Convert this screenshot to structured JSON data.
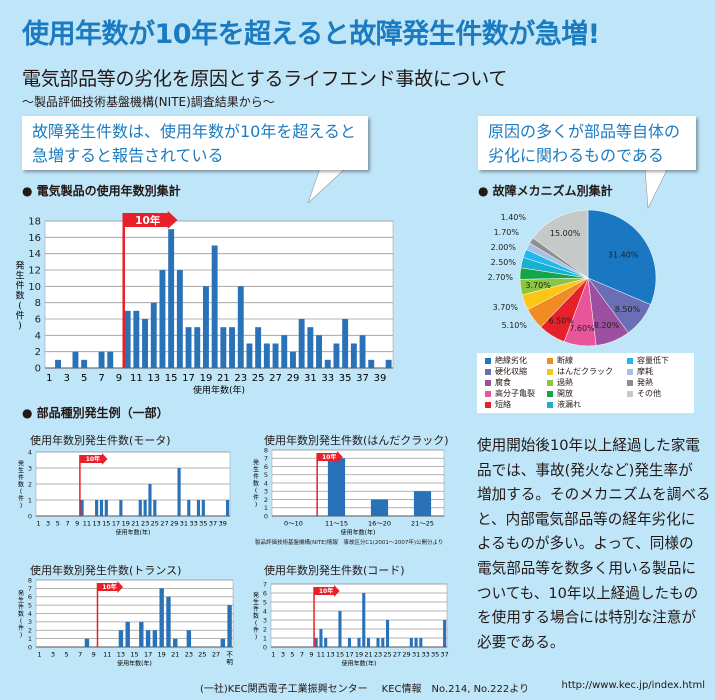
{
  "header": {
    "title": "使用年数が10年を超えると故障発生件数が急増!",
    "subtitle": "電気部品等の劣化を原因とするライフエンド事故について",
    "source_line": "～製品評価技術基盤機構(NITE)調査結果から～"
  },
  "callouts": {
    "left": [
      "故障発生件数は、使用年数が10年を超えると",
      "急増すると報告されている"
    ],
    "right": [
      "原因の多くが部品等自体の",
      "劣化に関わるものである"
    ]
  },
  "sections": {
    "main_chart": "● 電気製品の使用年数別集計",
    "pie_chart": "● 故障メカニズム別集計",
    "parts": "● 部品種別発生例（一部）"
  },
  "colors": {
    "accent": "#1b7bc0",
    "bar": "#2a72b8",
    "marker": "#e8202a",
    "background": "#bfe5f8"
  },
  "chart_data": [
    {
      "id": "main",
      "type": "bar",
      "title": "",
      "xlabel": "使用年数(年)",
      "ylabel": "発生件数(件)",
      "categories": [
        "1",
        "2",
        "3",
        "4",
        "5",
        "6",
        "7",
        "8",
        "9",
        "10",
        "11",
        "12",
        "13",
        "14",
        "15",
        "16",
        "17",
        "18",
        "19",
        "20",
        "21",
        "22",
        "23",
        "24",
        "25",
        "26",
        "27",
        "28",
        "29",
        "30",
        "31",
        "32",
        "33",
        "34",
        "35",
        "36",
        "37",
        "38",
        "39",
        "40"
      ],
      "values": [
        0,
        1,
        0,
        2,
        1,
        0,
        2,
        2,
        0,
        7,
        7,
        6,
        8,
        12,
        17,
        12,
        5,
        5,
        10,
        15,
        5,
        5,
        10,
        3,
        5,
        3,
        3,
        4,
        2,
        6,
        5,
        4,
        1,
        3,
        6,
        3,
        4,
        1,
        0,
        1
      ],
      "xtick_labels": [
        "1",
        "3",
        "5",
        "7",
        "9",
        "11",
        "13",
        "15",
        "17",
        "19",
        "21",
        "23",
        "25",
        "27",
        "29",
        "31",
        "33",
        "35",
        "37",
        "39"
      ],
      "ylim": [
        0,
        18
      ],
      "yticks": [
        0,
        2,
        4,
        6,
        8,
        10,
        12,
        14,
        16,
        18
      ],
      "grid": true,
      "marker": {
        "label": "10年",
        "at_category": "10"
      }
    },
    {
      "id": "motor",
      "type": "bar",
      "title": "使用年数別発生件数(モータ)",
      "xlabel": "使用年数(年)",
      "ylabel": "発生件数(件)",
      "categories": [
        "1",
        "2",
        "3",
        "4",
        "5",
        "6",
        "7",
        "8",
        "9",
        "10",
        "11",
        "12",
        "13",
        "14",
        "15",
        "16",
        "17",
        "18",
        "19",
        "20",
        "21",
        "22",
        "23",
        "24",
        "25",
        "26",
        "27",
        "28",
        "29",
        "30",
        "31",
        "32",
        "33",
        "34",
        "35",
        "36",
        "37",
        "38",
        "39",
        "40"
      ],
      "values": [
        0,
        0,
        0,
        0,
        0,
        0,
        0,
        0,
        0,
        1,
        0,
        0,
        1,
        1,
        1,
        0,
        0,
        1,
        0,
        0,
        0,
        1,
        1,
        2,
        1,
        0,
        0,
        0,
        0,
        3,
        0,
        1,
        0,
        1,
        1,
        0,
        0,
        0,
        0,
        1
      ],
      "xtick_labels": [
        "1",
        "3",
        "5",
        "7",
        "9",
        "11",
        "13",
        "15",
        "17",
        "19",
        "21",
        "23",
        "25",
        "27",
        "29",
        "31",
        "33",
        "35",
        "37",
        "39"
      ],
      "ylim": [
        0,
        4
      ],
      "yticks": [
        0,
        1,
        2,
        3,
        4
      ],
      "grid": true,
      "marker": {
        "label": "10年",
        "at_category": "10"
      }
    },
    {
      "id": "crack",
      "type": "bar",
      "title": "使用年数別発生件数(はんだクラック)",
      "xlabel": "使用年数(年)",
      "ylabel": "発生件数(件)",
      "categories": [
        "0～10",
        "11～15",
        "16～20",
        "21～25"
      ],
      "values": [
        0,
        7,
        2,
        3
      ],
      "xtick_labels": [
        "0～10",
        "11～15",
        "16～20",
        "21～25"
      ],
      "ylim": [
        0,
        8
      ],
      "yticks": [
        0,
        1,
        2,
        3,
        4,
        5,
        6,
        7,
        8
      ],
      "grid": true,
      "marker": {
        "label": "10年",
        "at_category": "11～15"
      },
      "note": "製品評価技術基盤機構(NITE)情報　事故区分C1(2001～2007年)公開分より"
    },
    {
      "id": "trans",
      "type": "bar",
      "title": "使用年数別発生件数(トランス)",
      "xlabel": "使用年数(年)",
      "ylabel": "発生件数(件)",
      "categories": [
        "1",
        "2",
        "3",
        "4",
        "5",
        "6",
        "7",
        "8",
        "9",
        "10",
        "11",
        "12",
        "13",
        "14",
        "15",
        "16",
        "17",
        "18",
        "19",
        "20",
        "21",
        "22",
        "23",
        "24",
        "25",
        "26",
        "27",
        "28",
        "不明"
      ],
      "values": [
        0,
        0,
        0,
        0,
        0,
        0,
        0,
        1,
        0,
        0,
        0,
        0,
        2,
        3,
        0,
        3,
        2,
        2,
        7,
        6,
        1,
        0,
        2,
        0,
        0,
        0,
        0,
        1,
        5
      ],
      "xtick_labels": [
        "1",
        "3",
        "5",
        "7",
        "9",
        "11",
        "13",
        "15",
        "17",
        "19",
        "21",
        "23",
        "25",
        "27",
        "不明"
      ],
      "ylim": [
        0,
        8
      ],
      "yticks": [
        0,
        1,
        2,
        3,
        4,
        5,
        6,
        7,
        8
      ],
      "grid": true,
      "marker": {
        "label": "10年",
        "at_category": "10"
      }
    },
    {
      "id": "cord",
      "type": "bar",
      "title": "使用年数別発生件数(コード)",
      "xlabel": "使用年数(年)",
      "ylabel": "発生件数(件)",
      "categories": [
        "1",
        "2",
        "3",
        "4",
        "5",
        "6",
        "7",
        "8",
        "9",
        "10",
        "11",
        "12",
        "13",
        "14",
        "15",
        "16",
        "17",
        "18",
        "19",
        "20",
        "21",
        "22",
        "23",
        "24",
        "25",
        "26",
        "27",
        "28",
        "29",
        "30",
        "31",
        "32",
        "33",
        "34",
        "35",
        "36",
        "37"
      ],
      "values": [
        0,
        0,
        0,
        0,
        0,
        0,
        0,
        0,
        0,
        1,
        2,
        1,
        0,
        0,
        4,
        0,
        1,
        0,
        1,
        6,
        1,
        0,
        1,
        1,
        3,
        0,
        0,
        0,
        0,
        1,
        1,
        1,
        0,
        0,
        0,
        0,
        3
      ],
      "xtick_labels": [
        "1",
        "3",
        "5",
        "7",
        "9",
        "11",
        "13",
        "15",
        "17",
        "19",
        "21",
        "23",
        "25",
        "27",
        "29",
        "31",
        "33",
        "35",
        "37"
      ],
      "ylim": [
        0,
        7
      ],
      "yticks": [
        0,
        1,
        2,
        3,
        4,
        5,
        6,
        7
      ],
      "grid": true,
      "marker": {
        "label": "10年",
        "at_category": "10"
      }
    },
    {
      "id": "pie",
      "type": "pie",
      "title": "故障メカニズム別集計",
      "legend_position": "bottom",
      "slices": [
        {
          "name": "絶縁劣化",
          "value": 31.4,
          "label": "31.40%",
          "color": "#1a78c2"
        },
        {
          "name": "硬化収縮",
          "value": 8.5,
          "label": "8.50%",
          "color": "#6a6fb5"
        },
        {
          "name": "腐食",
          "value": 8.2,
          "label": "8.20%",
          "color": "#9b4f9e"
        },
        {
          "name": "高分子亀裂",
          "value": 7.6,
          "label": "7.60%",
          "color": "#e9559a"
        },
        {
          "name": "短絡",
          "value": 6.5,
          "label": "6.50%",
          "color": "#e8202a"
        },
        {
          "name": "断線",
          "value": 5.1,
          "label": "5.10%",
          "color": "#f08c22"
        },
        {
          "name": "はんだクラック",
          "value": 3.7,
          "label": "3.70%",
          "color": "#fcc613"
        },
        {
          "name": "過熱",
          "value": 3.7,
          "label": "3.70%",
          "color": "#8cc63f"
        },
        {
          "name": "開放",
          "value": 2.7,
          "label": "2.70%",
          "color": "#14a54a"
        },
        {
          "name": "液漏れ",
          "value": 2.5,
          "label": "2.50%",
          "color": "#1ab0cf"
        },
        {
          "name": "容量低下",
          "value": 2.0,
          "label": "2.00%",
          "color": "#22b8ef"
        },
        {
          "name": "摩耗",
          "value": 1.7,
          "label": "1.70%",
          "color": "#a4c2e6"
        },
        {
          "name": "発熱",
          "value": 1.4,
          "label": "1.40%",
          "color": "#8e8e8e"
        },
        {
          "name": "その他",
          "value": 15.0,
          "label": "15.00%",
          "color": "#c5c9c7"
        }
      ],
      "legend_columns": [
        [
          "絶縁劣化",
          "硬化収縮",
          "腐食",
          "高分子亀裂",
          "短絡"
        ],
        [
          "断線",
          "はんだクラック",
          "過熱",
          "開放",
          "液漏れ"
        ],
        [
          "容量低下",
          "摩耗",
          "発熱",
          "その他"
        ]
      ]
    }
  ],
  "body_text_lines": [
    "使用開始後10年以上経過した家電",
    "品では、事故(発火など)発生率が",
    "増加する。そのメカニズムを調べる",
    "と、内部電気部品等の経年劣化に",
    "よるものが多い。よって、同様の",
    "電気部品等を数多く用いる製品に",
    "ついても、10年以上経過したもの",
    "を使用する場合には特別な注意が",
    "必要である。"
  ],
  "footer": {
    "organization": "(一社)KEC関西電子工業振興センター",
    "publication": "KEC情報　No.214, No.222より",
    "url": "http://www.kec.jp/index.html"
  }
}
